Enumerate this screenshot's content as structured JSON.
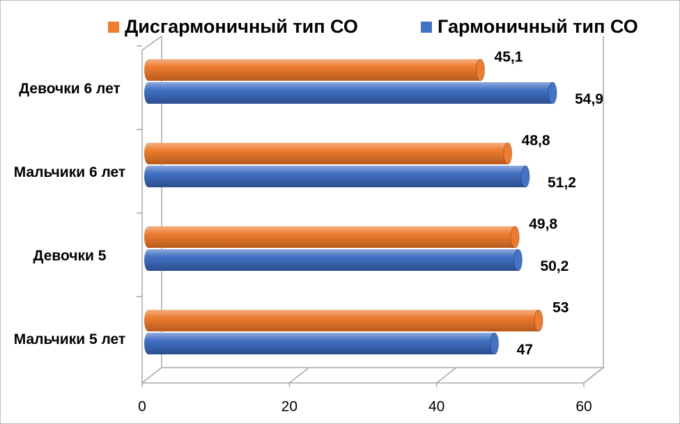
{
  "chart_data": {
    "type": "bar",
    "orientation": "horizontal",
    "categories": [
      "Девочки 6 лет",
      "Мальчики 6 лет",
      "Девочки 5",
      "Мальчики 5 лет"
    ],
    "series": [
      {
        "name": "Дисгармоничный тип СО",
        "color": "#ed7d31",
        "values": [
          45.1,
          48.8,
          49.8,
          53
        ],
        "value_labels": [
          "45,1",
          "48,8",
          "49,8",
          "53"
        ]
      },
      {
        "name": "Гармоничный тип СО",
        "color": "#4472c4",
        "values": [
          54.9,
          51.2,
          50.2,
          47
        ],
        "value_labels": [
          "54,9",
          "51,2",
          "50,2",
          "47"
        ]
      }
    ],
    "xlim": [
      0,
      60
    ],
    "xticks": [
      0,
      20,
      40,
      60
    ],
    "legend": "top",
    "grid": true
  }
}
